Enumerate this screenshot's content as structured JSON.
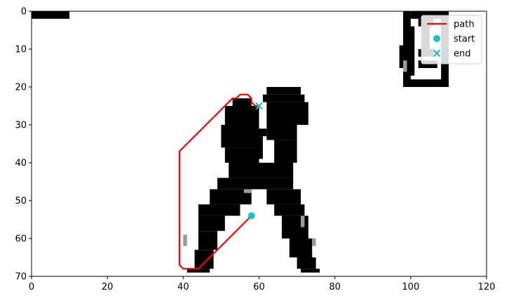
{
  "chart_data": {
    "type": "line",
    "title": "",
    "xlabel": "",
    "ylabel": "",
    "xlim": [
      0,
      120
    ],
    "ylim": [
      70,
      0
    ],
    "y_inverted": true,
    "grid": false,
    "legend_placement": "upper-right",
    "x_ticks": [
      0,
      20,
      40,
      60,
      80,
      100,
      120
    ],
    "y_ticks": [
      0,
      10,
      20,
      30,
      40,
      50,
      60,
      70
    ],
    "background_image": "binary occupancy grid (black = obstacle, white = free, gray = uncertain)",
    "series": [
      {
        "name": "path",
        "kind": "line",
        "color": "#ff0000",
        "x": [
          58,
          45,
          44,
          40,
          39,
          39,
          39,
          39,
          53,
          54,
          55,
          57,
          58,
          58,
          59,
          60
        ],
        "y": [
          54,
          67,
          68,
          68,
          67,
          50,
          37,
          37,
          23,
          23,
          22,
          22,
          23,
          24,
          25,
          25
        ]
      },
      {
        "name": "start",
        "kind": "marker",
        "marker": "circle",
        "color": "#17becf",
        "x": [
          58
        ],
        "y": [
          54
        ]
      },
      {
        "name": "end",
        "kind": "marker",
        "marker": "x",
        "color": "#17becf",
        "x": [
          60
        ],
        "y": [
          25
        ]
      }
    ]
  }
}
